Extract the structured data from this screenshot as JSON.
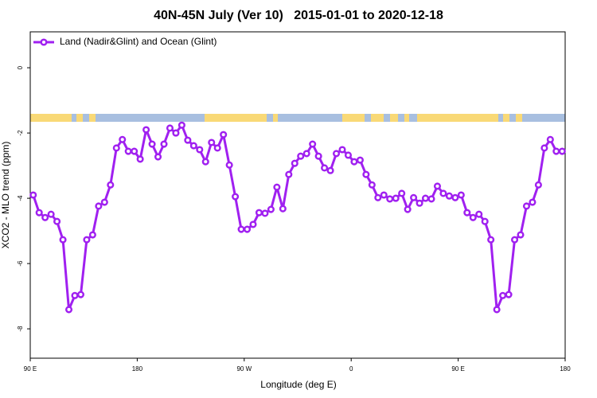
{
  "chart_data": {
    "type": "line",
    "title": "40N-45N July (Ver 10)   2015-01-01 to 2020-12-18",
    "x_label": "Longitude (deg E)",
    "y_label": "XCO2 - MLO trend (ppm)",
    "legend": "top-left",
    "xlim": [
      90,
      540
    ],
    "ylim": [
      -8.9,
      1.1
    ],
    "xticks": [
      {
        "value": 90,
        "label": "90 E"
      },
      180,
      {
        "value": 270,
        "label": "90 W"
      },
      {
        "value": 360,
        "label": "0"
      },
      {
        "value": 450,
        "label": "90 E"
      },
      {
        "value": 540,
        "label": "180"
      }
    ],
    "yticks": [
      0,
      -2,
      -4,
      -6,
      -8
    ],
    "x": [
      92.5,
      97.5,
      102.5,
      107.5,
      112.5,
      117.5,
      122.5,
      127.5,
      132.5,
      137.5,
      142.5,
      147.5,
      152.5,
      157.5,
      162.5,
      167.5,
      172.5,
      177.5,
      182.5,
      187.5,
      192.5,
      197.5,
      202.5,
      207.5,
      212.5,
      217.5,
      222.5,
      227.5,
      232.5,
      237.5,
      242.5,
      247.5,
      252.5,
      257.5,
      262.5,
      267.5,
      272.5,
      277.5,
      282.5,
      287.5,
      292.5,
      297.5,
      302.5,
      307.5,
      312.5,
      317.5,
      322.5,
      327.5,
      332.5,
      337.5,
      342.5,
      347.5,
      352.5,
      357.5,
      362.5,
      367.5,
      372.5,
      377.5,
      382.5,
      387.5,
      392.5,
      397.5,
      402.5,
      407.5,
      412.5,
      417.5,
      422.5,
      427.5,
      432.5,
      437.5,
      442.5,
      447.5,
      452.5,
      457.5,
      462.5,
      467.5,
      472.5,
      477.5,
      482.5,
      487.5,
      492.5,
      497.5,
      502.5,
      507.5,
      512.5,
      517.5,
      522.5,
      527.5,
      532.5,
      537.5
    ],
    "series": [
      {
        "name": "Land (Nadir&Glint) and Ocean (Glint)",
        "color": "#a020f0",
        "values": [
          -3.9,
          -4.44,
          -4.59,
          -4.49,
          -4.71,
          -5.27,
          -7.41,
          -6.98,
          -6.95,
          -5.27,
          -5.12,
          -4.24,
          -4.12,
          -3.59,
          -2.46,
          -2.2,
          -2.56,
          -2.56,
          -2.8,
          -1.9,
          -2.34,
          -2.73,
          -2.34,
          -1.85,
          -2.0,
          -1.76,
          -2.22,
          -2.39,
          -2.51,
          -2.88,
          -2.29,
          -2.46,
          -2.05,
          -2.98,
          -3.95,
          -4.95,
          -4.95,
          -4.8,
          -4.44,
          -4.46,
          -4.34,
          -3.66,
          -4.32,
          -3.27,
          -2.93,
          -2.71,
          -2.63,
          -2.34,
          -2.71,
          -3.07,
          -3.15,
          -2.63,
          -2.51,
          -2.68,
          -2.88,
          -2.83,
          -3.27,
          -3.59,
          -3.98,
          -3.9,
          -4.02,
          -4.0,
          -3.85,
          -4.34,
          -3.98,
          -4.15,
          -4.0,
          -4.02,
          -3.63,
          -3.85,
          -3.93,
          -3.98,
          -3.9,
          -4.44,
          -4.59,
          -4.49,
          -4.71,
          -5.27,
          -7.41,
          -6.98,
          -6.95,
          -5.27,
          -5.12,
          -4.24,
          -4.12,
          -3.59,
          -2.46,
          -2.2,
          -2.56,
          -2.56
        ]
      }
    ]
  }
}
